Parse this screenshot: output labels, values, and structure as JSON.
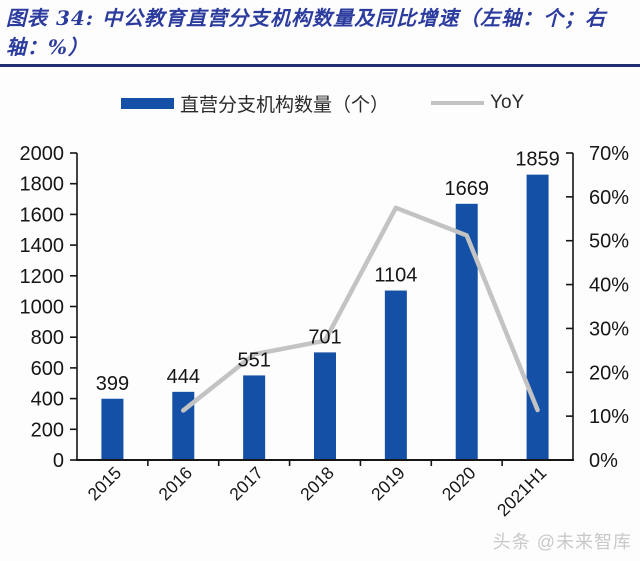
{
  "header": {
    "title_line1": "图表  34:  中公教育直营分支机构数量及同比增速（左轴：个；右",
    "title_line2": "轴：%）"
  },
  "legend": [
    {
      "label": "直营分支机构数量（个）",
      "type": "bar",
      "color": "#1450a5"
    },
    {
      "label": "YoY",
      "type": "line",
      "color": "#c3c3c3"
    }
  ],
  "watermark": "头条 @未来智库",
  "chart_data": {
    "type": "bar+line combo",
    "title": "中公教育直营分支机构数量及同比增速（左轴：个；右轴：%）",
    "categories": [
      "2015",
      "2016",
      "2017",
      "2018",
      "2019",
      "2020",
      "2021H1"
    ],
    "series": [
      {
        "name": "直营分支机构数量（个）",
        "type": "bar",
        "axis": "left",
        "color": "#1450a5",
        "values": [
          399,
          444,
          551,
          701,
          1104,
          1669,
          1859
        ],
        "data_labels": [
          "399",
          "444",
          "551",
          "701",
          "1104",
          "1669",
          "1859"
        ]
      },
      {
        "name": "YoY",
        "type": "line",
        "axis": "right",
        "color": "#c3c3c3",
        "values": [
          null,
          11.3,
          24.1,
          27.2,
          57.5,
          51.2,
          11.4
        ]
      }
    ],
    "left_axis": {
      "min": 0,
      "max": 2000,
      "step": 200,
      "labels": [
        "0",
        "200",
        "400",
        "600",
        "800",
        "1000",
        "1200",
        "1400",
        "1600",
        "1800",
        "2000"
      ]
    },
    "right_axis": {
      "min": 0,
      "max": 70,
      "step": 10,
      "labels": [
        "0%",
        "10%",
        "20%",
        "30%",
        "40%",
        "50%",
        "60%",
        "70%"
      ]
    },
    "grid": false,
    "legend_position": "top"
  }
}
